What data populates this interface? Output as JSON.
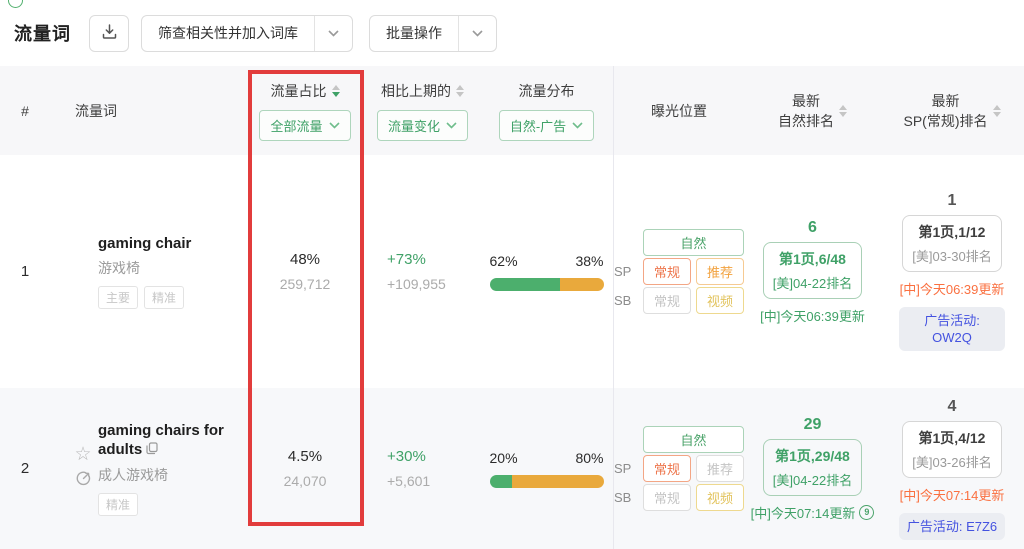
{
  "colors": {
    "accent_green": "#3fa167",
    "badge_red": "#ed744a",
    "badge_orange": "#f2a23e",
    "badge_yellow": "#e2c35d",
    "bar_green": "#4caf6d",
    "bar_orange": "#e9a93c",
    "campaign_blue": "#4452e0",
    "update_orange": "#fa7040",
    "highlight_red": "#e23c3c"
  },
  "toolbar": {
    "title": "流量词",
    "download_icon": "download-icon",
    "filter_button": "筛查相关性并加入词库",
    "batch_button": "批量操作"
  },
  "header": {
    "index": "#",
    "keyword": "流量词",
    "share": "流量占比",
    "share_filter": "全部流量",
    "change": "相比上期的",
    "change_filter": "流量变化",
    "distribution": "流量分布",
    "distribution_filter": "自然-广告",
    "exposure": "曝光位置",
    "natural_line1": "最新",
    "natural_line2": "自然排名",
    "sp_line1": "最新",
    "sp_line2": "SP(常规)排名"
  },
  "exposure_labels": {
    "sp": "SP",
    "sb": "SB"
  },
  "rows": [
    {
      "index": "1",
      "keyword": "gaming chair",
      "translation": "游戏椅",
      "tags": {
        "t0": "主要",
        "t1": "精准"
      },
      "share_pct": "48%",
      "share_count": "259,712",
      "change_pct": "+73%",
      "change_count": "+109,955",
      "dist": {
        "natural_pct": "62%",
        "ad_pct": "38%",
        "natural_width": 62
      },
      "exposure": {
        "natural": "自然",
        "sp": {
          "b0": "常规",
          "b1": "推荐"
        },
        "sb": {
          "b0": "常规",
          "b1": "视频"
        }
      },
      "natural_rank": {
        "rank": "6",
        "page": "第1页,6/48",
        "us": "[美]04-22排名",
        "cn": "[中]今天06:39更新"
      },
      "sp_rank": {
        "rank": "1",
        "page": "第1页,1/12",
        "us": "[美]03-30排名",
        "cn": "[中]今天06:39更新",
        "campaign": "广告活动: OW2Q"
      }
    },
    {
      "index": "2",
      "keyword": "gaming chairs for adults",
      "translation": "成人游戏椅",
      "tags": {
        "t0": "精准"
      },
      "share_pct": "4.5%",
      "share_count": "24,070",
      "change_pct": "+30%",
      "change_count": "+5,601",
      "dist": {
        "natural_pct": "20%",
        "ad_pct": "80%",
        "natural_width": 20
      },
      "exposure": {
        "natural": "自然",
        "sp": {
          "b0": "常规",
          "b1": "推荐"
        },
        "sb": {
          "b0": "常规",
          "b1": "视频"
        }
      },
      "natural_rank": {
        "rank": "29",
        "page": "第1页,29/48",
        "us": "[美]04-22排名",
        "cn": "[中]今天07:14更新",
        "history_badge": "9"
      },
      "sp_rank": {
        "rank": "4",
        "page": "第1页,4/12",
        "us": "[美]03-26排名",
        "cn": "[中]今天07:14更新",
        "campaign": "广告活动: E7Z6"
      }
    }
  ]
}
